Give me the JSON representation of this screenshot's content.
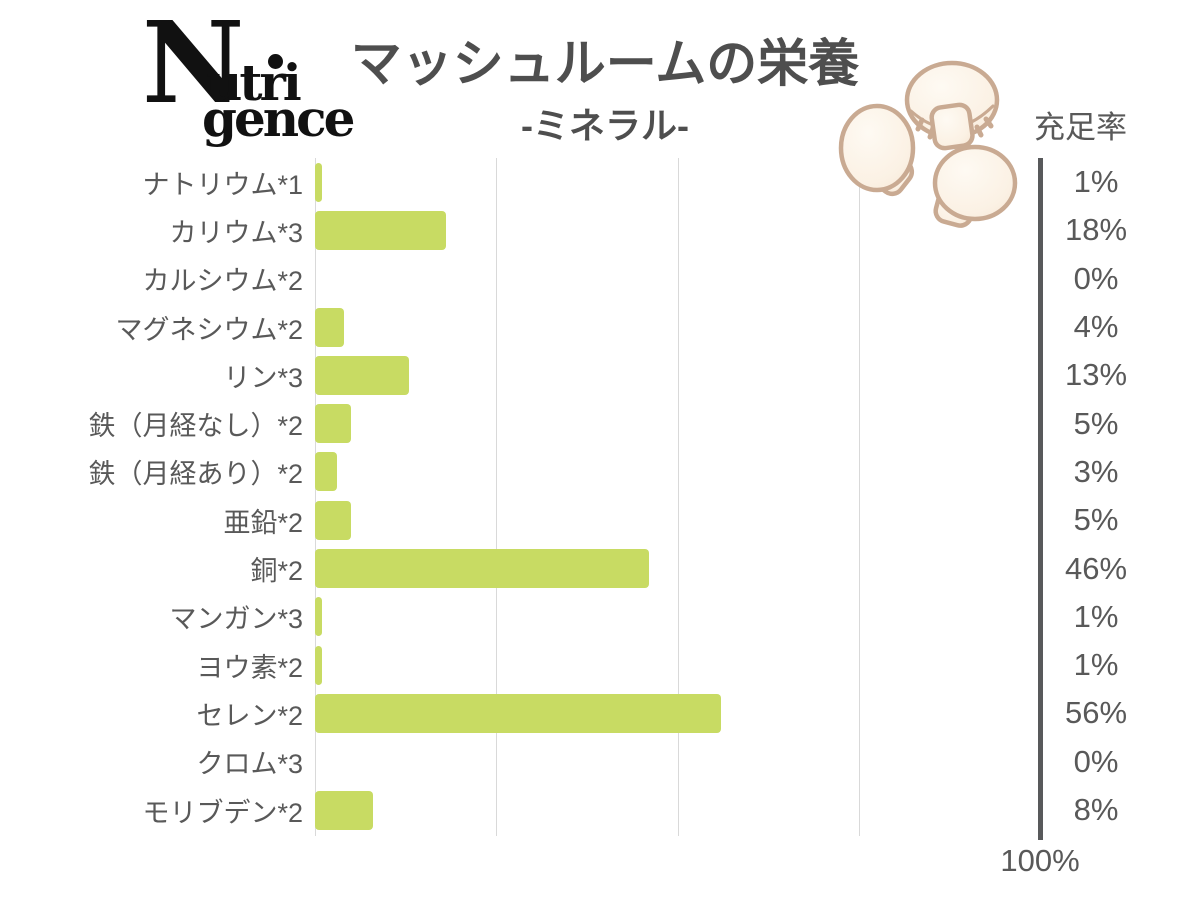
{
  "brand": {
    "big_letter": "N",
    "top_part": "utri",
    "bottom_part": "gence"
  },
  "header": {
    "title": "マッシュルームの栄養",
    "subtitle": "-ミネラル-",
    "value_column_header": "充足率",
    "axis_end_label": "100%"
  },
  "colors": {
    "bar": "#c8db63",
    "gridline": "#d9d9d9",
    "axis_line": "#58595b",
    "text": "#595959",
    "title_text": "#4e4e4e",
    "mushroom_outline": "#c9aa92",
    "mushroom_fill": "#fbf2e6"
  },
  "icons": {
    "decoration": "mushroom-illustration"
  },
  "chart_data": {
    "type": "bar",
    "orientation": "horizontal",
    "title": "マッシュルームの栄養",
    "subtitle": "-ミネラル-",
    "value_axis_label": "充足率",
    "xlim": [
      0,
      100
    ],
    "gridline_values": [
      0,
      25,
      50,
      75,
      100
    ],
    "grid": true,
    "legend": false,
    "categories": [
      "ナトリウム*1",
      "カリウム*3",
      "カルシウム*2",
      "マグネシウム*2",
      "リン*3",
      "鉄（月経なし）*2",
      "鉄（月経あり）*2",
      "亜鉛*2",
      "銅*2",
      "マンガン*3",
      "ヨウ素*2",
      "セレン*2",
      "クロム*3",
      "モリブデン*2"
    ],
    "values": [
      1,
      18,
      0,
      4,
      13,
      5,
      3,
      5,
      46,
      1,
      1,
      56,
      0,
      8
    ],
    "value_labels": [
      "1%",
      "18%",
      "0%",
      "4%",
      "13%",
      "5%",
      "3%",
      "5%",
      "46%",
      "1%",
      "1%",
      "56%",
      "0%",
      "8%"
    ]
  }
}
